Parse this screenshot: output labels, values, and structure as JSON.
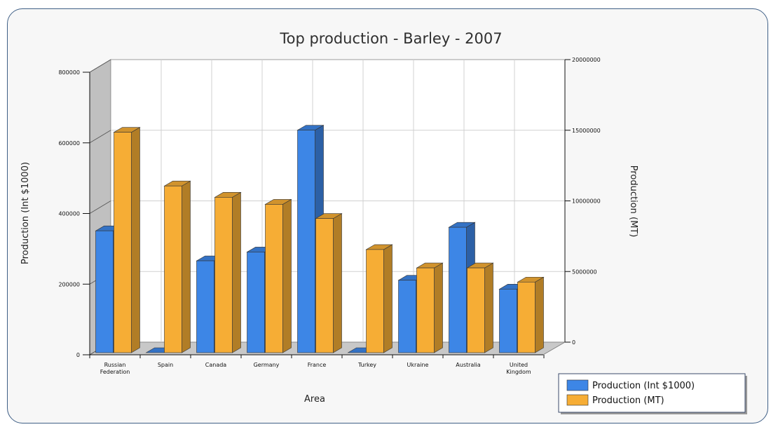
{
  "chart_data": {
    "type": "bar",
    "title": "Top production - Barley - 2007",
    "xlabel": "Area",
    "ylabel": "Production (Int $1000)",
    "y2label": "Production (MT)",
    "categories": [
      [
        "Russian",
        "Federation"
      ],
      [
        "Spain"
      ],
      [
        "Canada"
      ],
      [
        "Germany"
      ],
      [
        "France"
      ],
      [
        "Turkey"
      ],
      [
        "Ukraine"
      ],
      [
        "Australia"
      ],
      [
        "United",
        "Kingdom"
      ]
    ],
    "ylim": [
      0,
      800000
    ],
    "y2lim": [
      0,
      20000000
    ],
    "yticks": [
      0,
      200000,
      400000,
      600000,
      800000
    ],
    "y2ticks": [
      0,
      5000000,
      10000000,
      15000000,
      20000000
    ],
    "series": [
      {
        "name": "Production (Int $1000)",
        "axis": "left",
        "color": "#3d86e6",
        "values": [
          345000,
          0,
          260000,
          285000,
          630000,
          0,
          205000,
          355000,
          180000
        ]
      },
      {
        "name": "Production (MT)",
        "axis": "right",
        "color": "#f6ad35",
        "values": [
          15600000,
          11800000,
          11000000,
          10500000,
          9500000,
          7300000,
          6000000,
          6000000,
          5000000
        ]
      }
    ],
    "grid": true,
    "legend": "bottom-right"
  }
}
